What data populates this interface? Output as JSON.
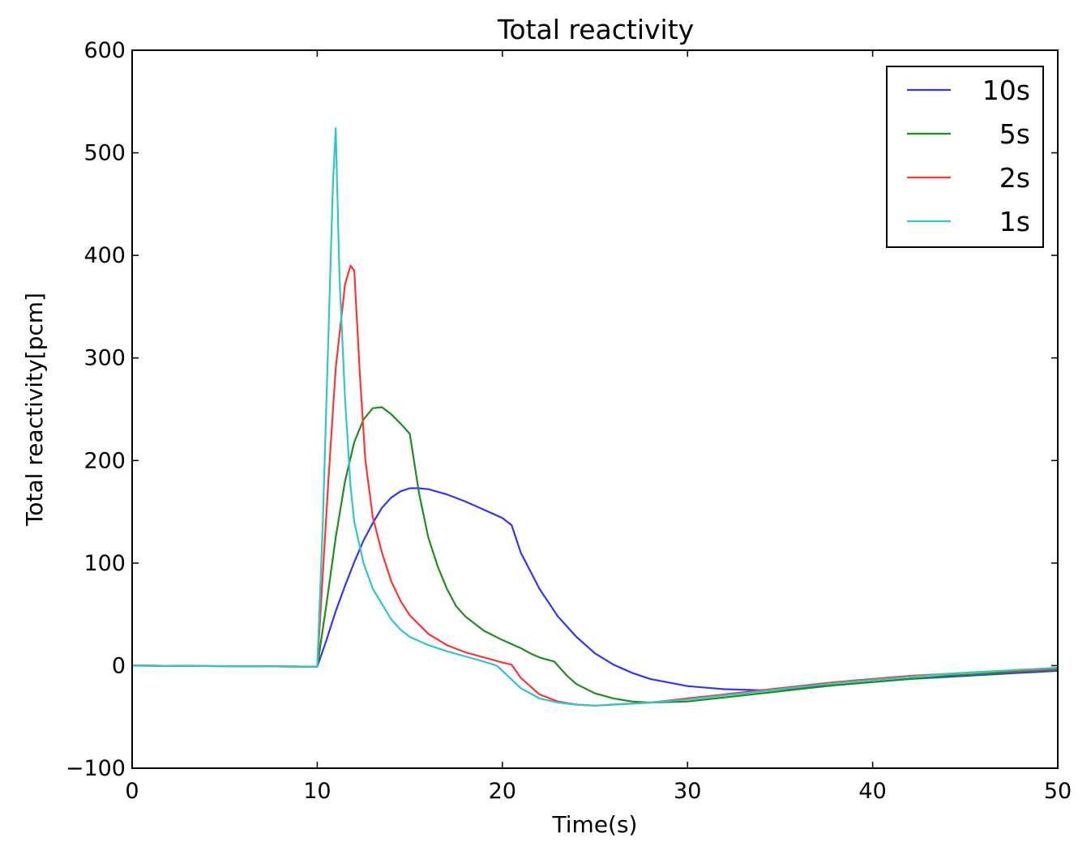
{
  "chart_data": {
    "type": "line",
    "title": "Total reactivity",
    "xlabel": "Time(s)",
    "ylabel": "Total reactivity[pcm]",
    "xlim": [
      0,
      50
    ],
    "ylim": [
      -100,
      600
    ],
    "xticks": [
      0,
      10,
      20,
      30,
      40,
      50
    ],
    "xtick_labels": [
      "0",
      "10",
      "20",
      "30",
      "40",
      "50"
    ],
    "yticks": [
      -100,
      0,
      100,
      200,
      300,
      400,
      500,
      600
    ],
    "ytick_labels": [
      "−100",
      "0",
      "100",
      "200",
      "300",
      "400",
      "500",
      "600"
    ],
    "grid": false,
    "legend_position": "top-right",
    "series": [
      {
        "name": "10s",
        "color": "#3333ff",
        "x": [
          0,
          10,
          10.5,
          11,
          11.5,
          12,
          12.5,
          13,
          13.5,
          14,
          14.5,
          15,
          15.5,
          16,
          17,
          18,
          19,
          20,
          20.5,
          21,
          22,
          23,
          24,
          25,
          26,
          27,
          28,
          30,
          32,
          34,
          36,
          38,
          40,
          42,
          44,
          46,
          48,
          50
        ],
        "y": [
          0,
          -1,
          25,
          53,
          78,
          101,
          122,
          139,
          154,
          164,
          170,
          173,
          173,
          172,
          167,
          160,
          152,
          144,
          137,
          110,
          75,
          48,
          28,
          12,
          1,
          -7,
          -13,
          -20,
          -23,
          -24,
          -22,
          -19,
          -16,
          -13,
          -11,
          -9,
          -7,
          -5
        ]
      },
      {
        "name": "5s",
        "color": "#1f8c1f",
        "x": [
          0,
          10,
          10.5,
          11,
          11.5,
          12,
          12.5,
          13,
          13.5,
          14,
          14.5,
          15,
          15.5,
          16,
          16.5,
          17,
          17.5,
          18,
          19,
          20,
          21,
          21.5,
          22,
          22.8,
          23.5,
          24,
          25,
          26,
          27,
          28,
          30,
          32,
          34,
          36,
          38,
          40,
          42,
          44,
          46,
          48,
          50
        ],
        "y": [
          0,
          -1,
          60,
          125,
          180,
          218,
          240,
          251,
          252,
          245,
          236,
          226,
          168,
          125,
          97,
          75,
          58,
          48,
          34,
          25,
          17,
          12,
          8,
          4,
          -10,
          -18,
          -27,
          -32,
          -35,
          -36,
          -35,
          -31,
          -27,
          -23,
          -19,
          -16,
          -13,
          -10,
          -8,
          -6,
          -4
        ]
      },
      {
        "name": "2s",
        "color": "#ff3333",
        "x": [
          0,
          10,
          10.3,
          10.6,
          11,
          11.5,
          11.8,
          12,
          12.3,
          12.6,
          13,
          13.5,
          14,
          14.5,
          15,
          15.5,
          16,
          17,
          18,
          19,
          20,
          20.5,
          21,
          22,
          23,
          24,
          25,
          26,
          28,
          30,
          32,
          34,
          36,
          38,
          40,
          42,
          44,
          46,
          48,
          50
        ],
        "y": [
          0,
          -1,
          90,
          180,
          290,
          372,
          390,
          385,
          285,
          200,
          145,
          110,
          82,
          63,
          49,
          40,
          31,
          20,
          13,
          8,
          3,
          1,
          -12,
          -28,
          -35,
          -38,
          -39,
          -38,
          -36,
          -32,
          -28,
          -24,
          -20,
          -16,
          -13,
          -10,
          -8,
          -6,
          -5,
          -3
        ]
      },
      {
        "name": "1s",
        "color": "#2ec7c7",
        "x": [
          0,
          10,
          10.3,
          10.6,
          10.85,
          11,
          11.2,
          11.5,
          11.8,
          12,
          12.5,
          13,
          13.5,
          14,
          14.5,
          15,
          16,
          17,
          18,
          19,
          19.7,
          20,
          21,
          22,
          23,
          24,
          25,
          26,
          28,
          30,
          32,
          34,
          36,
          38,
          40,
          42,
          44,
          46,
          48,
          50
        ],
        "y": [
          0,
          -1,
          140,
          320,
          470,
          524,
          380,
          260,
          175,
          140,
          100,
          75,
          60,
          45,
          35,
          28,
          20,
          14,
          9,
          4,
          0,
          -5,
          -22,
          -32,
          -36,
          -38,
          -39,
          -38,
          -36,
          -33,
          -29,
          -25,
          -21,
          -17,
          -14,
          -11,
          -8,
          -6,
          -4,
          -2
        ]
      }
    ]
  }
}
